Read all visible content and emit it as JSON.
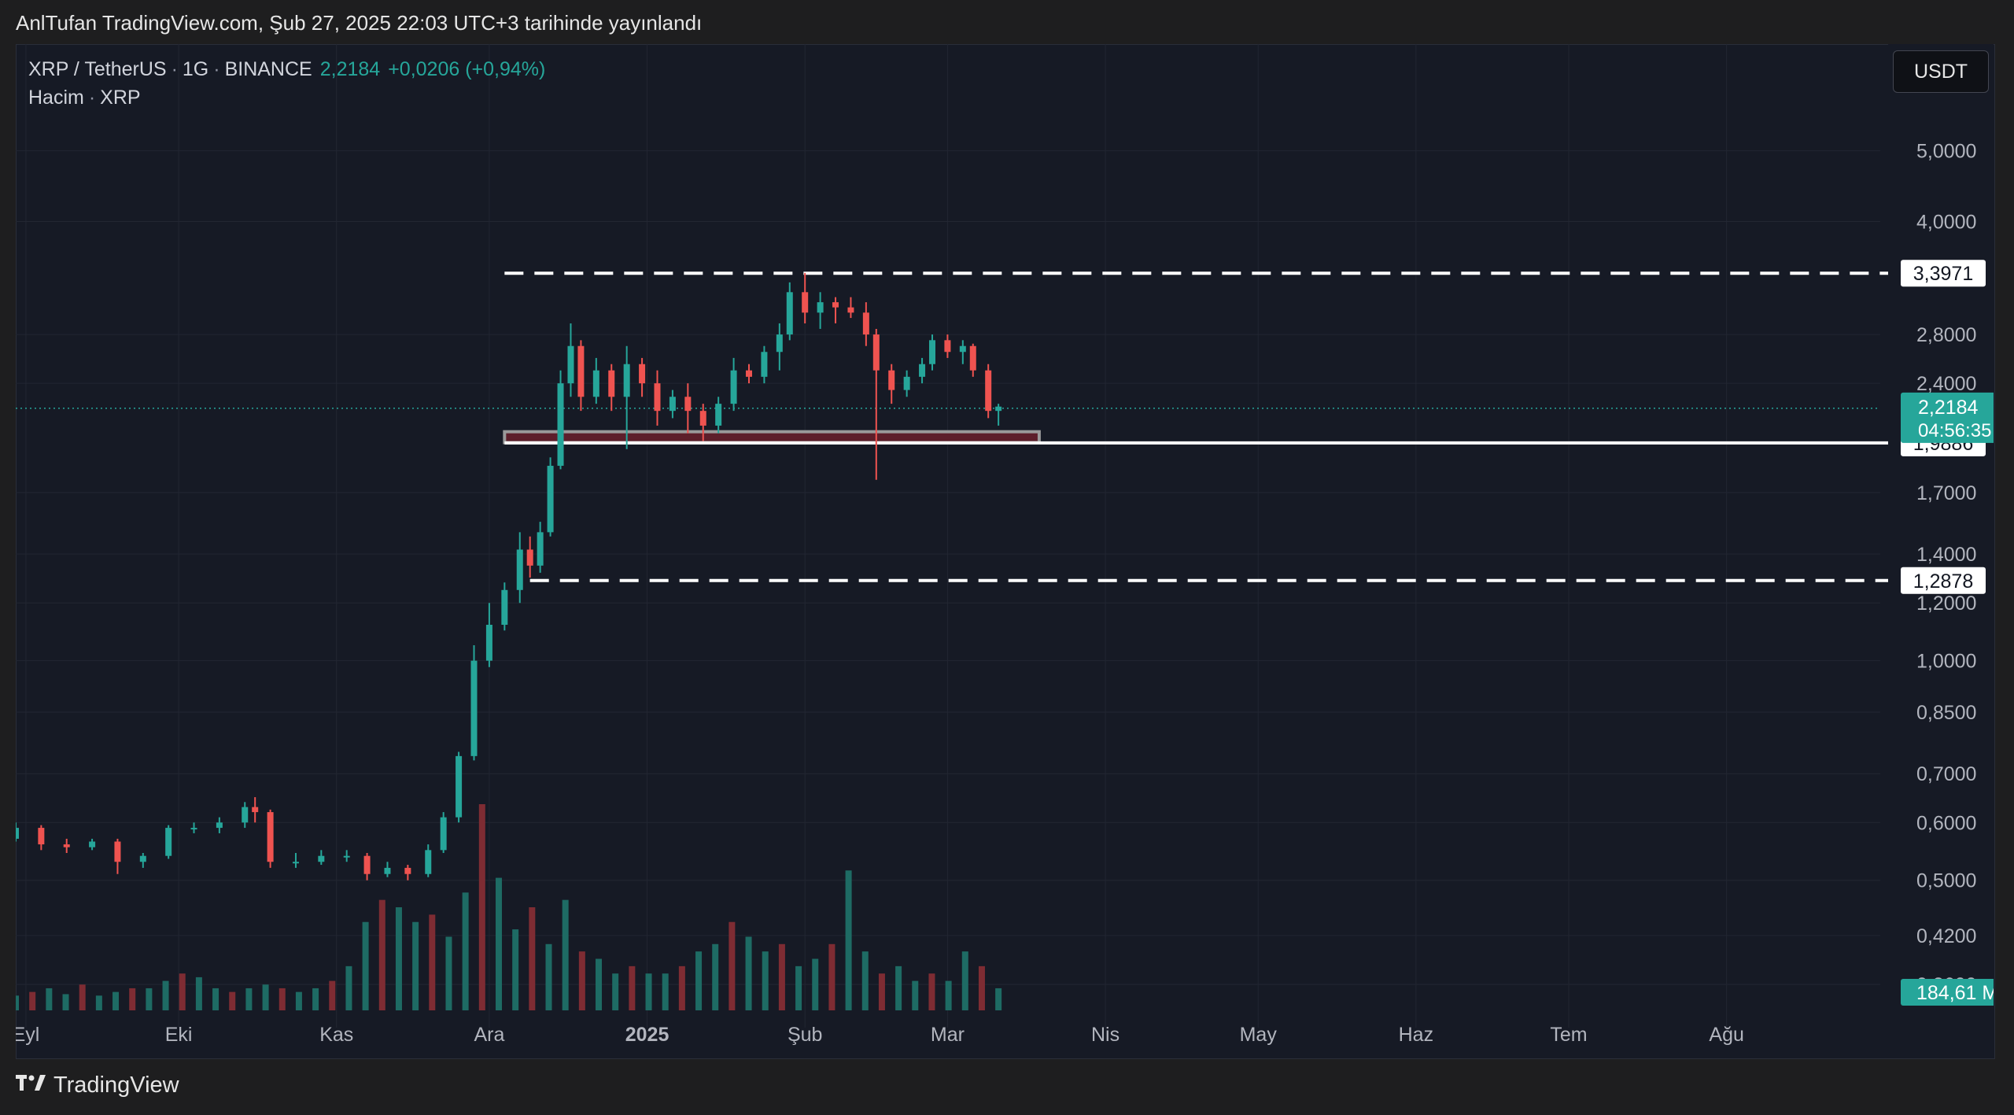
{
  "caption": "AnlTufan TradingView.com, Şub 27, 2025 22:03 UTC+3 tarihinde yayınlandı",
  "legend": {
    "symbol": "XRP / TetherUS",
    "interval": "1G",
    "exchange": "BINANCE",
    "price": "2,2184",
    "change": "+0,0206 (+0,94%)",
    "volume_label": "Hacim",
    "volume_symbol": "XRP"
  },
  "currency_button": "USDT",
  "footer": {
    "brand": "TradingView"
  },
  "colors": {
    "up": "#26a69a",
    "down": "#ef5350",
    "background": "#161a25",
    "level_line": "#ffffff",
    "zone_fill": "#5d1f2b"
  },
  "icons": {
    "logo": "tradingview-logo-icon"
  },
  "chart_data": {
    "type": "candlestick",
    "y_scale": "log",
    "ylim": [
      0.33,
      5.6
    ],
    "y_ticks": [
      "5,0000",
      "4,0000",
      "2,8000",
      "2,4000",
      "1,7000",
      "1,4000",
      "1,2000",
      "1,0000",
      "0,8500",
      "0,7000",
      "0,6000",
      "0,5000",
      "0,4200",
      "0,3600"
    ],
    "x_ticks": [
      "Eyl",
      "Eki",
      "Kas",
      "Ara",
      "2025",
      "Şub",
      "Mar",
      "Nis",
      "May",
      "Haz",
      "Tem",
      "Ağu"
    ],
    "price_labels": [
      {
        "text": "3,3971",
        "value": 3.3971
      },
      {
        "text": "1,9886",
        "value": 1.9886
      },
      {
        "text": "1,2878",
        "value": 1.2878
      }
    ],
    "current_price": {
      "text": "2,2184",
      "value": 2.2184,
      "countdown": "04:56:35"
    },
    "volume_label": "184,61 M",
    "levels": [
      {
        "value": 3.3971,
        "style": "dashed"
      },
      {
        "value": 1.9886,
        "style": "solid"
      },
      {
        "value": 1.2878,
        "style": "dashed"
      }
    ],
    "zone": {
      "from": "2024-12-04",
      "to": "2025-03-19",
      "low": 1.99,
      "high": 2.06
    },
    "candles": [
      [
        "2024-08-30",
        0.57,
        0.6,
        0.565,
        0.59
      ],
      [
        "2024-09-04",
        0.59,
        0.595,
        0.55,
        0.56
      ],
      [
        "2024-09-09",
        0.56,
        0.57,
        0.545,
        0.555
      ],
      [
        "2024-09-14",
        0.555,
        0.57,
        0.55,
        0.565
      ],
      [
        "2024-09-19",
        0.565,
        0.57,
        0.51,
        0.53
      ],
      [
        "2024-09-24",
        0.53,
        0.545,
        0.52,
        0.54
      ],
      [
        "2024-09-29",
        0.54,
        0.595,
        0.535,
        0.59
      ],
      [
        "2024-10-04",
        0.59,
        0.6,
        0.58,
        0.59
      ],
      [
        "2024-10-09",
        0.59,
        0.61,
        0.58,
        0.6
      ],
      [
        "2024-10-14",
        0.6,
        0.64,
        0.59,
        0.63
      ],
      [
        "2024-10-16",
        0.63,
        0.65,
        0.6,
        0.62
      ],
      [
        "2024-10-19",
        0.62,
        0.625,
        0.52,
        0.53
      ],
      [
        "2024-10-24",
        0.53,
        0.545,
        0.52,
        0.53
      ],
      [
        "2024-10-29",
        0.53,
        0.55,
        0.525,
        0.54
      ],
      [
        "2024-11-03",
        0.54,
        0.55,
        0.53,
        0.54
      ],
      [
        "2024-11-07",
        0.54,
        0.545,
        0.5,
        0.51
      ],
      [
        "2024-11-11",
        0.51,
        0.53,
        0.505,
        0.52
      ],
      [
        "2024-11-15",
        0.52,
        0.525,
        0.5,
        0.51
      ],
      [
        "2024-11-19",
        0.51,
        0.56,
        0.505,
        0.55
      ],
      [
        "2024-11-22",
        0.55,
        0.62,
        0.545,
        0.61
      ],
      [
        "2024-11-25",
        0.61,
        0.75,
        0.6,
        0.74
      ],
      [
        "2024-11-28",
        0.74,
        1.05,
        0.73,
        1.0
      ],
      [
        "2024-12-01",
        1.0,
        1.2,
        0.98,
        1.12
      ],
      [
        "2024-12-04",
        1.12,
        1.28,
        1.1,
        1.25
      ],
      [
        "2024-12-07",
        1.25,
        1.5,
        1.2,
        1.42
      ],
      [
        "2024-12-09",
        1.42,
        1.48,
        1.3,
        1.35
      ],
      [
        "2024-12-11",
        1.35,
        1.55,
        1.32,
        1.5
      ],
      [
        "2024-12-13",
        1.5,
        1.9,
        1.48,
        1.85
      ],
      [
        "2024-12-15",
        1.85,
        2.5,
        1.83,
        2.4
      ],
      [
        "2024-12-17",
        2.4,
        2.9,
        2.3,
        2.7
      ],
      [
        "2024-12-19",
        2.7,
        2.75,
        2.2,
        2.3
      ],
      [
        "2024-12-22",
        2.3,
        2.6,
        2.25,
        2.5
      ],
      [
        "2024-12-25",
        2.5,
        2.55,
        2.2,
        2.3
      ],
      [
        "2024-12-28",
        2.3,
        2.7,
        1.95,
        2.55
      ],
      [
        "2024-12-31",
        2.55,
        2.6,
        2.3,
        2.4
      ],
      [
        "2025-01-03",
        2.4,
        2.5,
        2.1,
        2.2
      ],
      [
        "2025-01-06",
        2.2,
        2.35,
        2.15,
        2.3
      ],
      [
        "2025-01-09",
        2.3,
        2.4,
        2.05,
        2.2
      ],
      [
        "2025-01-12",
        2.2,
        2.25,
        2.0,
        2.1
      ],
      [
        "2025-01-15",
        2.1,
        2.3,
        2.05,
        2.25
      ],
      [
        "2025-01-18",
        2.25,
        2.6,
        2.2,
        2.5
      ],
      [
        "2025-01-21",
        2.5,
        2.55,
        2.4,
        2.45
      ],
      [
        "2025-01-24",
        2.45,
        2.7,
        2.4,
        2.65
      ],
      [
        "2025-01-27",
        2.65,
        2.9,
        2.5,
        2.8
      ],
      [
        "2025-01-29",
        2.8,
        3.3,
        2.75,
        3.2
      ],
      [
        "2025-02-01",
        3.2,
        3.4,
        2.9,
        3.0
      ],
      [
        "2025-02-04",
        3.0,
        3.2,
        2.85,
        3.1
      ],
      [
        "2025-02-07",
        3.1,
        3.15,
        2.9,
        3.05
      ],
      [
        "2025-02-10",
        3.05,
        3.15,
        2.95,
        3.0
      ],
      [
        "2025-02-13",
        3.0,
        3.1,
        2.7,
        2.8
      ],
      [
        "2025-02-15",
        2.8,
        2.85,
        1.77,
        2.5
      ],
      [
        "2025-02-18",
        2.5,
        2.55,
        2.25,
        2.35
      ],
      [
        "2025-02-21",
        2.35,
        2.5,
        2.3,
        2.45
      ],
      [
        "2025-02-24",
        2.45,
        2.6,
        2.4,
        2.55
      ],
      [
        "2025-02-26",
        2.55,
        2.8,
        2.5,
        2.75
      ],
      [
        "2025-03-01",
        2.75,
        2.8,
        2.6,
        2.65
      ],
      [
        "2025-03-04",
        2.65,
        2.75,
        2.55,
        2.7
      ],
      [
        "2025-03-06",
        2.7,
        2.72,
        2.45,
        2.5
      ],
      [
        "2025-03-09",
        2.5,
        2.55,
        2.15,
        2.2
      ],
      [
        "2025-03-11",
        2.2,
        2.25,
        2.1,
        2.23
      ]
    ],
    "volumes": [
      0.2,
      0.25,
      0.3,
      0.22,
      0.35,
      0.2,
      0.25,
      0.3,
      0.3,
      0.4,
      0.5,
      0.45,
      0.3,
      0.25,
      0.3,
      0.35,
      0.3,
      0.25,
      0.3,
      0.4,
      0.6,
      1.2,
      1.5,
      1.4,
      1.2,
      1.3,
      1.0,
      1.6,
      2.8,
      1.8,
      1.1,
      1.4,
      0.9,
      1.5,
      0.8,
      0.7,
      0.5,
      0.6,
      0.5,
      0.5,
      0.6,
      0.8,
      0.9,
      1.2,
      1.0,
      0.8,
      0.9,
      0.6,
      0.7,
      0.9,
      1.9,
      0.8,
      0.5,
      0.6,
      0.4,
      0.5,
      0.4,
      0.8,
      0.6,
      0.3
    ]
  }
}
